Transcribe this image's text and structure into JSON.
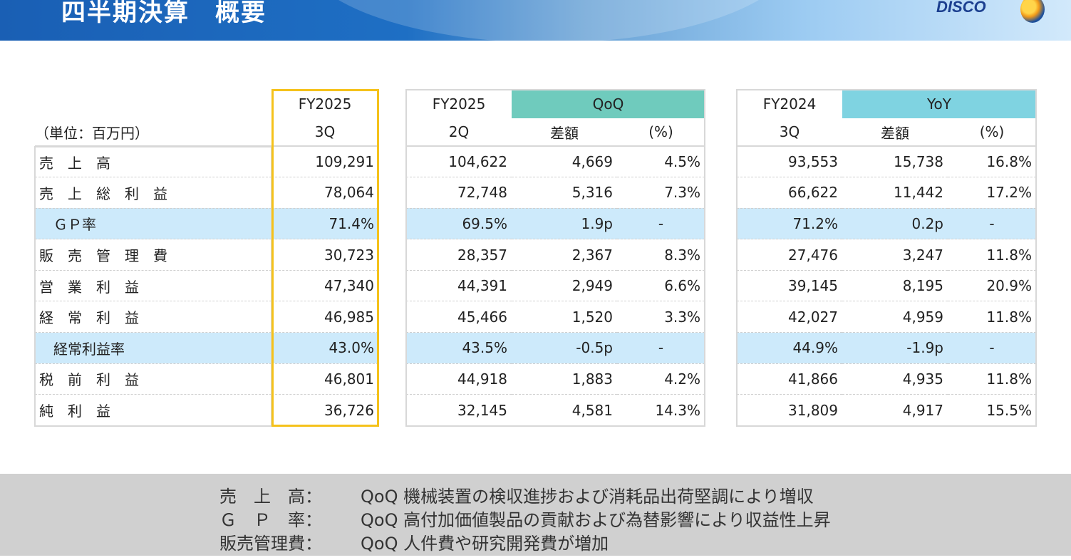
{
  "header": {
    "title": "四半期決算　概要",
    "logo": "DISCO"
  },
  "unit": "（単位：百万円）",
  "table1": {
    "head1": "FY2025",
    "head2": "3Q"
  },
  "table2": {
    "head1": "FY2025",
    "head2": "2Q",
    "group": "QoQ",
    "diff": "差額",
    "pct": "(%)"
  },
  "table3": {
    "head1": "FY2024",
    "head2": "3Q",
    "group": "YoY",
    "diff": "差額",
    "pct": "(%)"
  },
  "rows": [
    {
      "label": "売　上　高",
      "rate": false,
      "cur": "109,291",
      "q2": "104,622",
      "qd": "4,669",
      "qp": "4.5%",
      "py": "93,553",
      "yd": "15,738",
      "yp": "16.8%"
    },
    {
      "label": "売　上　総　利　益",
      "rate": false,
      "cur": "78,064",
      "q2": "72,748",
      "qd": "5,316",
      "qp": "7.3%",
      "py": "66,622",
      "yd": "11,442",
      "yp": "17.2%"
    },
    {
      "label": "　ＧＰ率",
      "rate": true,
      "cur": "71.4%",
      "q2": "69.5%",
      "qd": "1.9p",
      "qp": "-",
      "py": "71.2%",
      "yd": "0.2p",
      "yp": "-"
    },
    {
      "label": "販　売　管　理　費",
      "rate": false,
      "cur": "30,723",
      "q2": "28,357",
      "qd": "2,367",
      "qp": "8.3%",
      "py": "27,476",
      "yd": "3,247",
      "yp": "11.8%"
    },
    {
      "label": "営　業　利　益",
      "rate": false,
      "cur": "47,340",
      "q2": "44,391",
      "qd": "2,949",
      "qp": "6.6%",
      "py": "39,145",
      "yd": "8,195",
      "yp": "20.9%"
    },
    {
      "label": "経　常　利　益",
      "rate": false,
      "cur": "46,985",
      "q2": "45,466",
      "qd": "1,520",
      "qp": "3.3%",
      "py": "42,027",
      "yd": "4,959",
      "yp": "11.8%"
    },
    {
      "label": "　経常利益率",
      "rate": true,
      "cur": "43.0%",
      "q2": "43.5%",
      "qd": "-0.5p",
      "qp": "-",
      "py": "44.9%",
      "yd": "-1.9p",
      "yp": "-"
    },
    {
      "label": "税　前　利　益",
      "rate": false,
      "cur": "46,801",
      "q2": "44,918",
      "qd": "1,883",
      "qp": "4.2%",
      "py": "41,866",
      "yd": "4,935",
      "yp": "11.8%"
    },
    {
      "label": "純　利　益",
      "rate": false,
      "cur": "36,726",
      "q2": "32,145",
      "qd": "4,581",
      "qp": "14.3%",
      "py": "31,809",
      "yd": "4,917",
      "yp": "15.5%"
    }
  ],
  "notes": [
    {
      "key": "売　上　高：",
      "text": "QoQ 機械装置の検収進捗および消耗品出荷堅調により増収"
    },
    {
      "key": "Ｇ　Ｐ　率：",
      "text": "QoQ 高付加価値製品の貢献および為替影響により収益性上昇"
    },
    {
      "key": "販売管理費：",
      "text": "QoQ 人件費や研究開発費が増加"
    }
  ]
}
